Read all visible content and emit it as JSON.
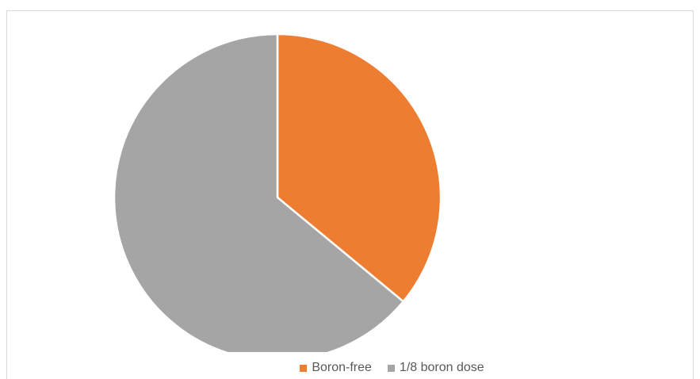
{
  "chart_data": {
    "type": "pie",
    "title": "",
    "categories": [
      "Boron-free",
      "1/8 boron dose"
    ],
    "values": [
      36,
      64
    ],
    "colors": [
      "#ED7D31",
      "#A5A5A5"
    ],
    "start_angle_deg": 0,
    "direction": "clockwise",
    "legend_position": "bottom"
  }
}
